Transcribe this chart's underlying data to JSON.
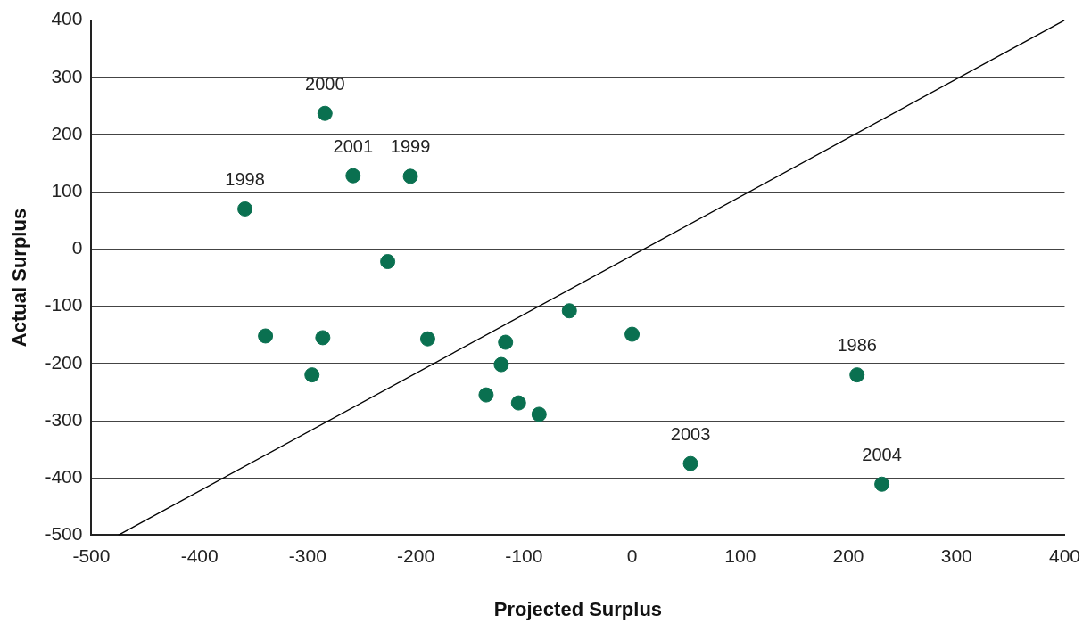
{
  "chart_data": {
    "type": "scatter",
    "xlabel": "Projected Surplus",
    "ylabel": "Actual Surplus",
    "xlim": [
      -500,
      400
    ],
    "ylim": [
      -500,
      400
    ],
    "xticks": [
      -500,
      -400,
      -300,
      -200,
      -100,
      0,
      100,
      200,
      300,
      400
    ],
    "yticks": [
      -500,
      -400,
      -300,
      -200,
      -100,
      0,
      100,
      200,
      300,
      400
    ],
    "grid": "y",
    "legend": false,
    "series": [
      {
        "type": "scatter",
        "marker": "circle",
        "color": "#0a7050",
        "x": [
          -358,
          -284,
          -258,
          -205,
          -226,
          -339,
          -286,
          -296,
          -189,
          -117,
          -121,
          -135,
          -105,
          -86,
          -58,
          0,
          208,
          54,
          231
        ],
        "values": [
          70,
          237,
          128,
          127,
          -22,
          -152,
          -155,
          -220,
          -157,
          -163,
          -202,
          -255,
          -269,
          -289,
          -108,
          -149,
          -220,
          -375,
          -411
        ]
      },
      {
        "type": "line",
        "marker": "none",
        "color": "#000000",
        "x": [
          -475,
          400
        ],
        "values": [
          -500,
          400
        ]
      }
    ],
    "annotations": [
      {
        "text": "1998",
        "x": -358,
        "y": 70
      },
      {
        "text": "2000",
        "x": -284,
        "y": 237
      },
      {
        "text": "2001",
        "x": -258,
        "y": 128
      },
      {
        "text": "1999",
        "x": -205,
        "y": 127
      },
      {
        "text": "1986",
        "x": 208,
        "y": -220
      },
      {
        "text": "2003",
        "x": 54,
        "y": -375
      },
      {
        "text": "2004",
        "x": 231,
        "y": -411
      }
    ]
  }
}
